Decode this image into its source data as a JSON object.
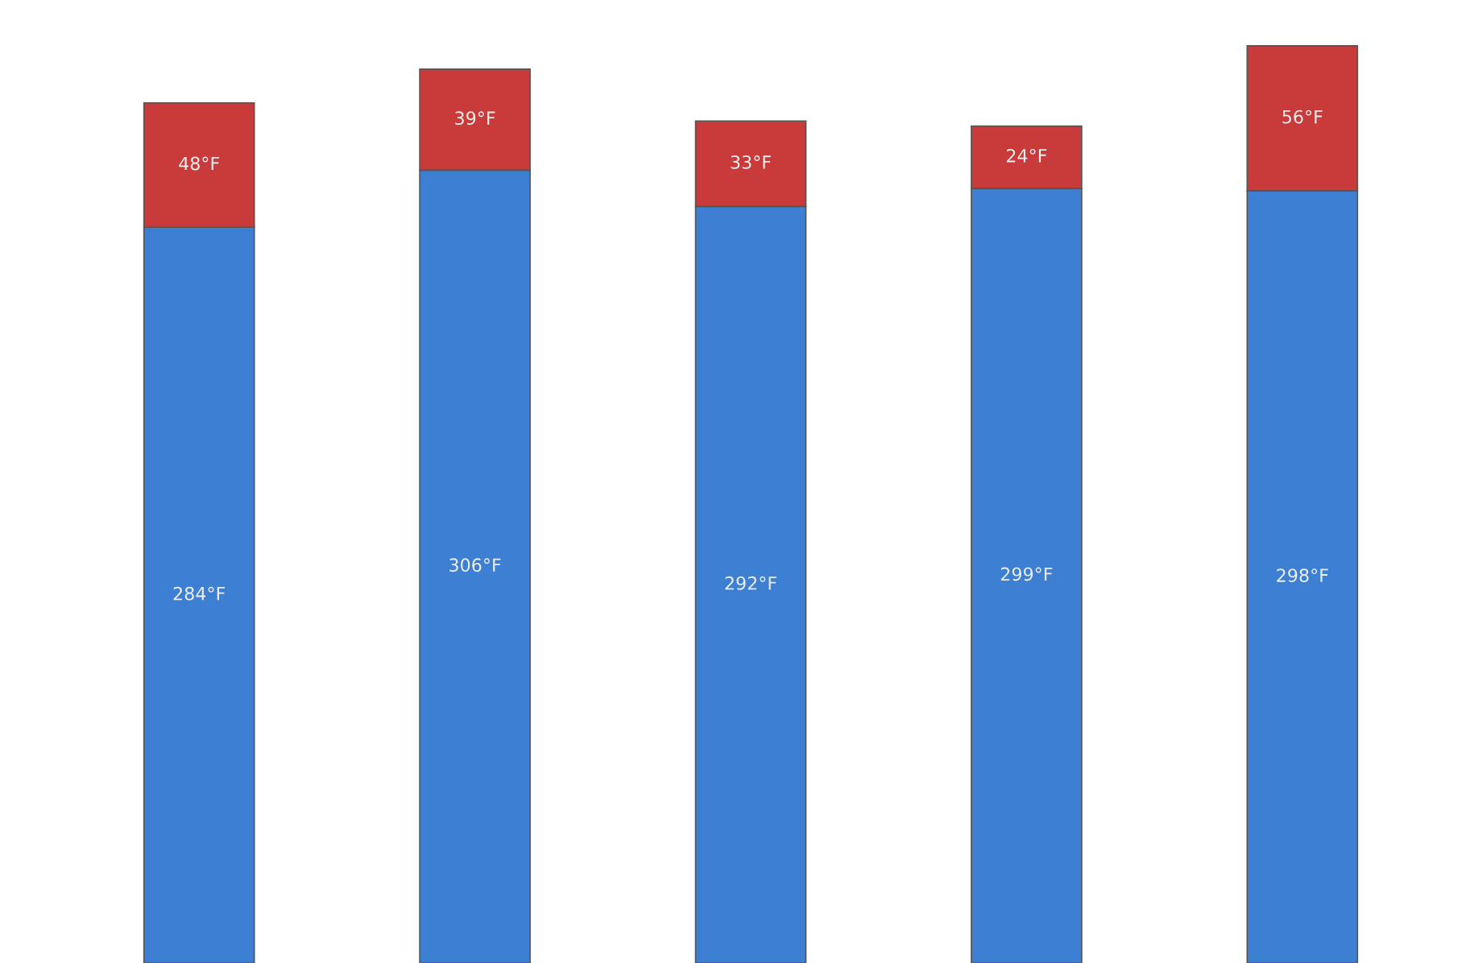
{
  "chart_data": {
    "type": "bar",
    "stacked": true,
    "categories": [
      null,
      null,
      null,
      null,
      null
    ],
    "tick_labels": false,
    "grid": false,
    "legend": false,
    "series": [
      {
        "color": "#3d7fd2",
        "values": [
          284,
          306,
          292,
          299,
          298
        ],
        "value_labels": [
          "284°F",
          "306°F",
          "292°F",
          "299°F",
          "298°F"
        ]
      },
      {
        "color": "#c93a3a",
        "values": [
          48,
          39,
          33,
          24,
          56
        ],
        "value_labels": [
          "48°F",
          "39°F",
          "33°F",
          "24°F",
          "56°F"
        ]
      }
    ]
  }
}
